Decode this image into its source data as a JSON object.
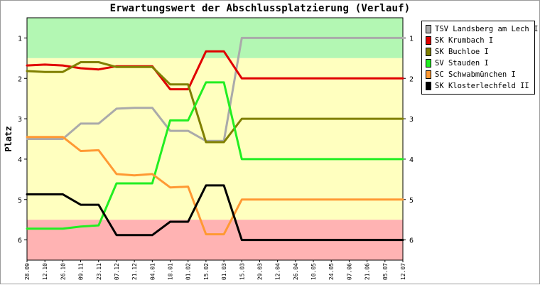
{
  "chart_data": {
    "type": "line",
    "title": "Erwartungswert der Abschlussplatzierung (Verlauf)",
    "xlabel": "",
    "ylabel": "Platz",
    "ylim": [
      0.5,
      6.5
    ],
    "y_inverted": true,
    "yticks": [
      1,
      2,
      3,
      4,
      5,
      6
    ],
    "x": [
      "28.09",
      "12.10",
      "26.10",
      "09.11",
      "23.11",
      "07.12",
      "21.12",
      "04.01",
      "18.01",
      "01.02",
      "15.02",
      "01.03",
      "15.03",
      "29.03",
      "12.04",
      "26.04",
      "10.05",
      "24.05",
      "07.06",
      "21.06",
      "05.07",
      "12.07"
    ],
    "bands": [
      {
        "from": 0.5,
        "to": 1.5,
        "color": "#b3f7b3"
      },
      {
        "from": 1.5,
        "to": 5.5,
        "color": "#ffffbf"
      },
      {
        "from": 5.5,
        "to": 6.5,
        "color": "#ffb3b3"
      }
    ],
    "legend_position": "right",
    "grid": false,
    "series": [
      {
        "name": "TSV Landsberg am Lech I",
        "color": "#aaaaaa",
        "values": [
          3.5,
          3.5,
          3.5,
          3.12,
          3.12,
          2.75,
          2.73,
          2.73,
          3.3,
          3.3,
          3.55,
          3.55,
          1.0,
          1.0,
          1.0,
          1.0,
          1.0,
          1.0,
          1.0,
          1.0,
          1.0,
          1.0
        ]
      },
      {
        "name": "SK Krumbach I",
        "color": "#e00000",
        "values": [
          1.68,
          1.66,
          1.68,
          1.75,
          1.78,
          1.7,
          1.7,
          1.7,
          2.27,
          2.27,
          1.33,
          1.33,
          2.0,
          2.0,
          2.0,
          2.0,
          2.0,
          2.0,
          2.0,
          2.0,
          2.0,
          2.0
        ]
      },
      {
        "name": "SK Buchloe I",
        "color": "#808000",
        "values": [
          1.82,
          1.84,
          1.84,
          1.6,
          1.6,
          1.72,
          1.72,
          1.72,
          2.15,
          2.15,
          3.58,
          3.58,
          3.0,
          3.0,
          3.0,
          3.0,
          3.0,
          3.0,
          3.0,
          3.0,
          3.0,
          3.0
        ]
      },
      {
        "name": "SV Stauden I",
        "color": "#22ee22",
        "values": [
          5.72,
          5.72,
          5.72,
          5.67,
          5.64,
          4.6,
          4.6,
          4.6,
          3.04,
          3.04,
          2.1,
          2.1,
          4.0,
          4.0,
          4.0,
          4.0,
          4.0,
          4.0,
          4.0,
          4.0,
          4.0,
          4.0
        ]
      },
      {
        "name": "SC Schwabmünchen I",
        "color": "#ff9933",
        "values": [
          3.45,
          3.45,
          3.45,
          3.8,
          3.78,
          4.37,
          4.4,
          4.37,
          4.7,
          4.68,
          5.86,
          5.86,
          5.0,
          5.0,
          5.0,
          5.0,
          5.0,
          5.0,
          5.0,
          5.0,
          5.0,
          5.0
        ]
      },
      {
        "name": "SK Klosterlechfeld II",
        "color": "#000000",
        "values": [
          4.87,
          4.87,
          4.87,
          5.13,
          5.13,
          5.88,
          5.88,
          5.88,
          5.55,
          5.55,
          4.65,
          4.65,
          6.0,
          6.0,
          6.0,
          6.0,
          6.0,
          6.0,
          6.0,
          6.0,
          6.0,
          6.0
        ]
      }
    ]
  }
}
